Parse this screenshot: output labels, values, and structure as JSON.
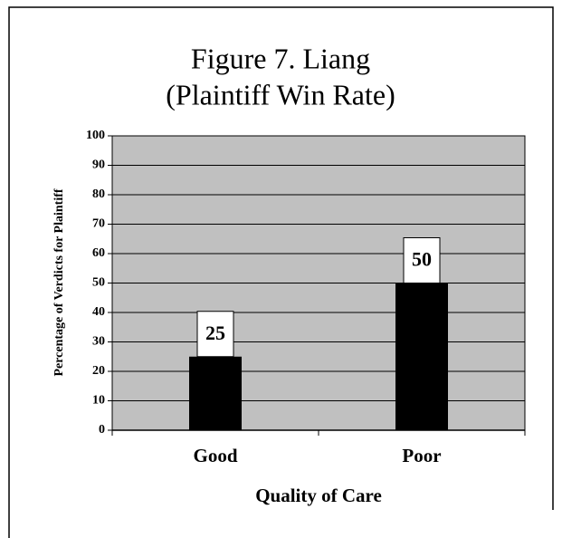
{
  "chart_data": {
    "type": "bar",
    "title": [
      "Figure 7.  Liang",
      "(Plaintiff Win Rate)"
    ],
    "x_label": "Quality of Care",
    "y_label": "Percentage of Verdicts for Plaintiff",
    "categories": [
      "Good",
      "Poor"
    ],
    "values": [
      25,
      50
    ],
    "color": "#000000",
    "plot_background": "#c0c0c0",
    "ylim": [
      0,
      100
    ],
    "yticks": [
      0,
      10,
      20,
      30,
      40,
      50,
      60,
      70,
      80,
      90,
      100
    ],
    "grid": true
  }
}
